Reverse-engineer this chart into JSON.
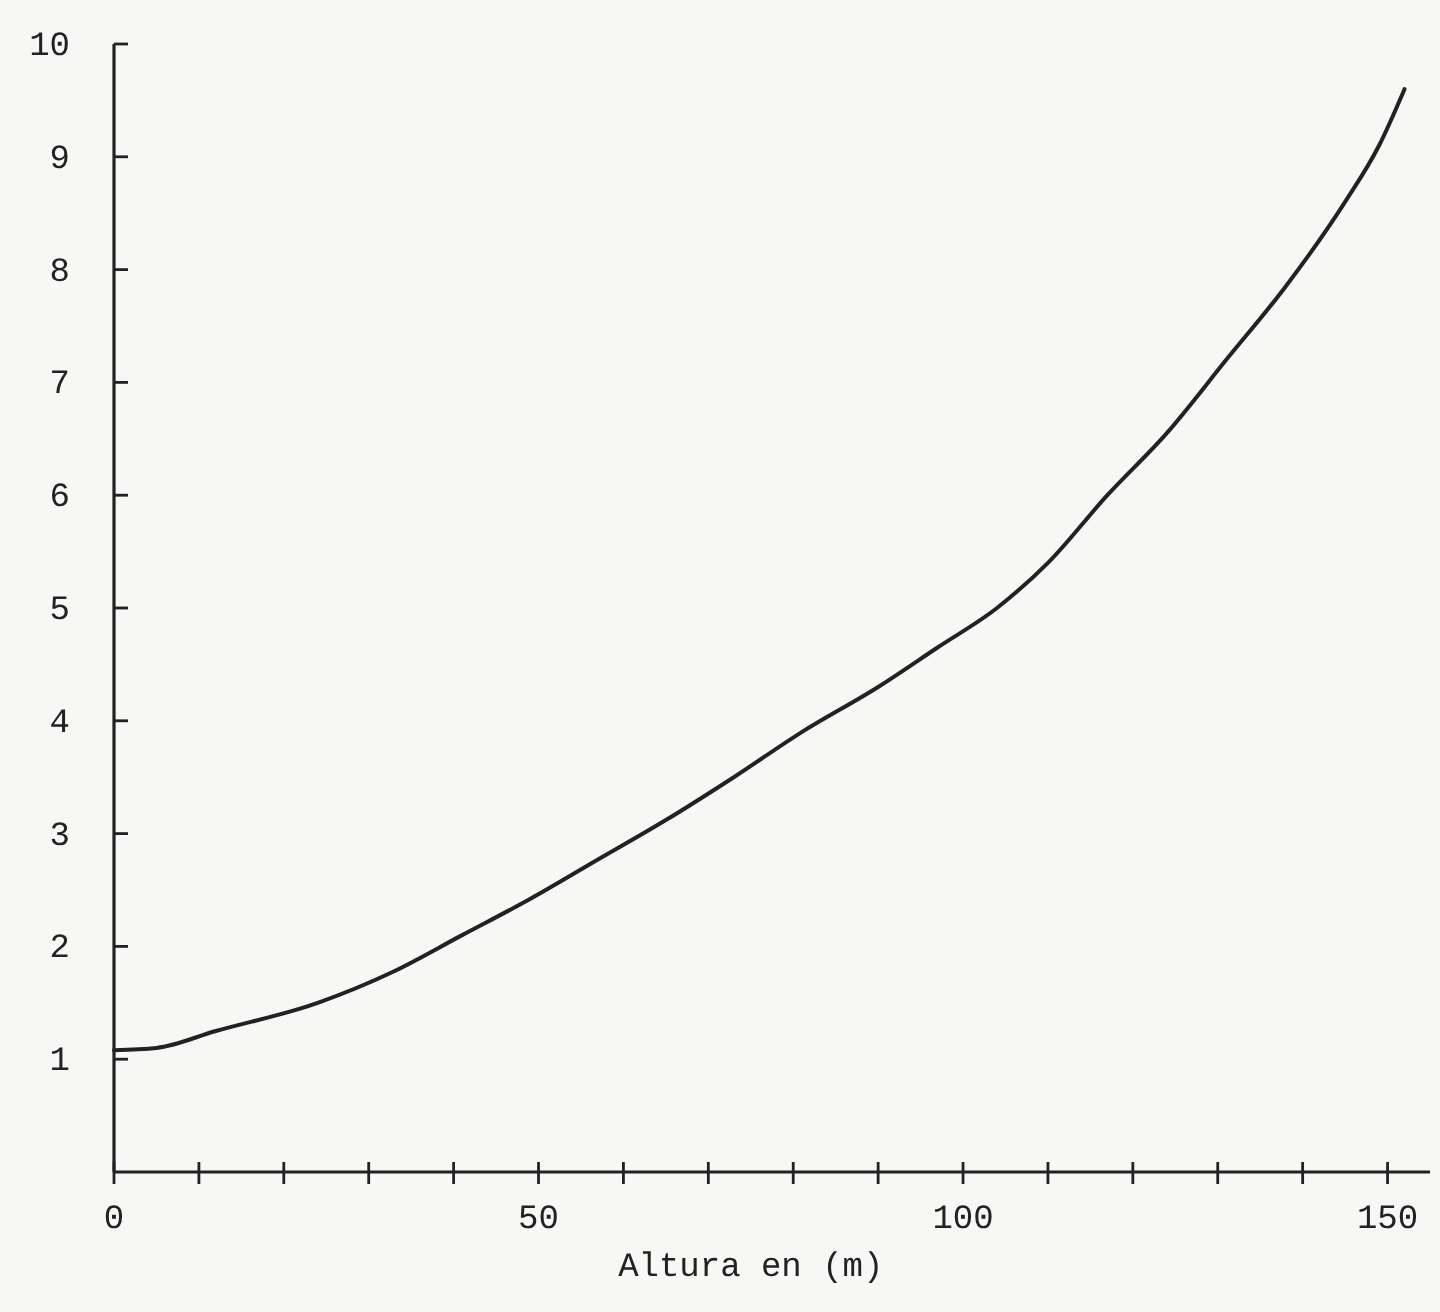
{
  "chart_data": {
    "type": "line",
    "xlabel": "Altura en (m)",
    "x": [
      0,
      5,
      12,
      24,
      33,
      41,
      49,
      57,
      65,
      73,
      81,
      90,
      97,
      104,
      110,
      117,
      124,
      131,
      138,
      145,
      149,
      152
    ],
    "values": [
      1.08,
      1.1,
      1.25,
      1.5,
      1.78,
      2.1,
      2.42,
      2.77,
      3.12,
      3.5,
      3.9,
      4.3,
      4.65,
      5.0,
      5.4,
      6.0,
      6.55,
      7.2,
      7.85,
      8.6,
      9.1,
      9.6
    ],
    "color": "#222222",
    "marker": "none",
    "line_style": "solid",
    "grid": false,
    "xlim": [
      0,
      155
    ],
    "ylim": [
      0,
      10
    ],
    "xticks": [
      0,
      {
        "value": 10,
        "label": null
      },
      {
        "value": 20,
        "label": null
      },
      {
        "value": 30,
        "label": null
      },
      {
        "value": 40,
        "label": null
      },
      50,
      {
        "value": 60,
        "label": null
      },
      {
        "value": 70,
        "label": null
      },
      {
        "value": 80,
        "label": null
      },
      {
        "value": 90,
        "label": null
      },
      100,
      {
        "value": 110,
        "label": null
      },
      {
        "value": 120,
        "label": null
      },
      {
        "value": 130,
        "label": null
      },
      {
        "value": 140,
        "label": null
      },
      150
    ],
    "yticks": [
      1,
      2,
      3,
      4,
      5,
      6,
      7,
      8,
      9,
      10
    ]
  }
}
